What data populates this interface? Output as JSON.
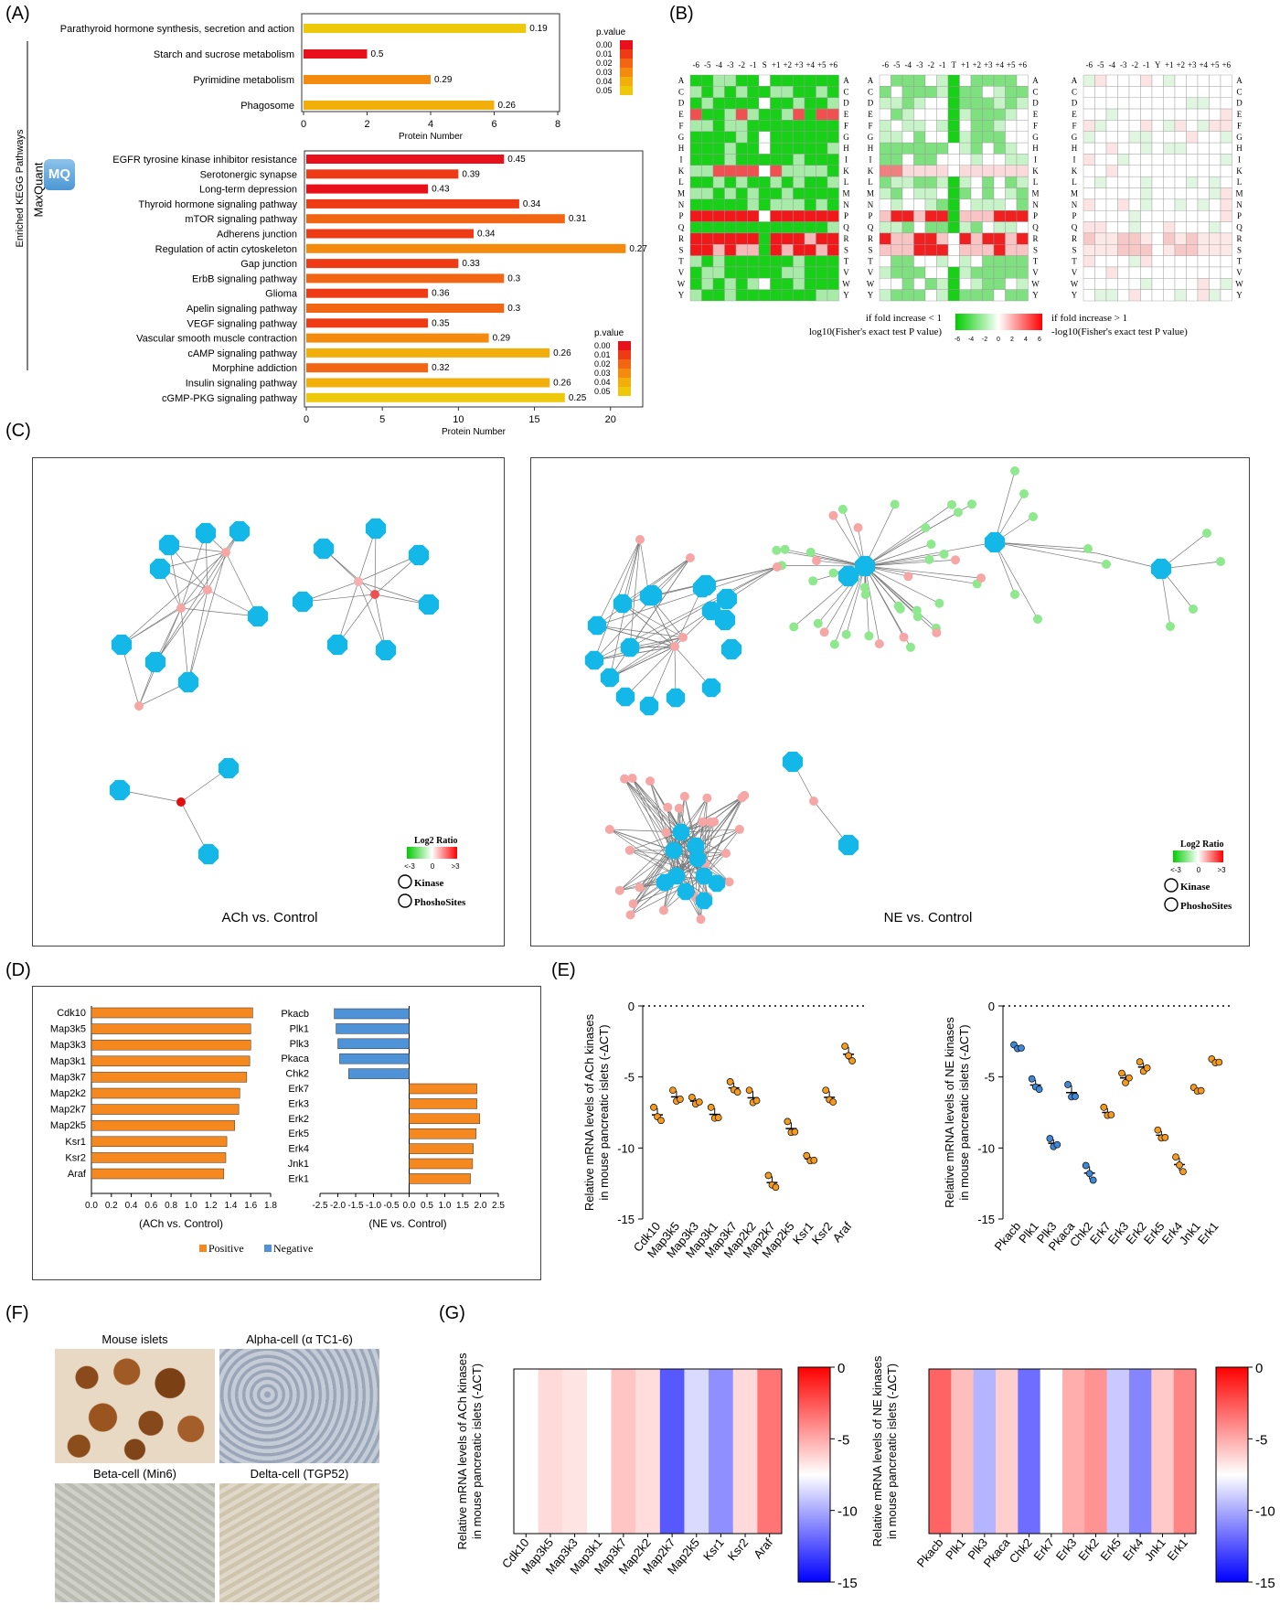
{
  "panel_letters": {
    "A": "(A)",
    "B": "(B)",
    "C": "(C)",
    "D": "(D)",
    "E": "(E)",
    "F": "(F)",
    "G": "(G)"
  },
  "panelA": {
    "side_label": "Enriched KEGG Pathways",
    "maxquant_label": "MaxQuant",
    "logo_text": "MQ",
    "legend_title": "p.value",
    "legend_ticks": [
      "0.00",
      "0.01",
      "0.02",
      "0.03",
      "0.04",
      "0.05"
    ],
    "legend_colors": [
      "#e8101a",
      "#ee3b15",
      "#f26512",
      "#f48b0e",
      "#f2ae0b",
      "#eec80a"
    ]
  },
  "panelB": {
    "aa_rows": [
      "A",
      "C",
      "D",
      "E",
      "F",
      "G",
      "H",
      "I",
      "K",
      "L",
      "M",
      "N",
      "P",
      "Q",
      "R",
      "S",
      "T",
      "V",
      "W",
      "Y"
    ],
    "heatmaps": [
      {
        "center": "S",
        "cols": [
          "-6",
          "-5",
          "-4",
          "-3",
          "-2",
          "-1",
          "S",
          "+1",
          "+2",
          "+3",
          "+4",
          "+5",
          "+6"
        ]
      },
      {
        "center": "T",
        "cols": [
          "-6",
          "-5",
          "-4",
          "-3",
          "-2",
          "-1",
          "T",
          "+1",
          "+2",
          "+3",
          "+4",
          "+5",
          "+6"
        ]
      },
      {
        "center": "Y",
        "cols": [
          "-6",
          "-5",
          "-4",
          "-3",
          "-2",
          "-1",
          "Y",
          "+1",
          "+2",
          "+3",
          "+4",
          "+5",
          "+6"
        ]
      }
    ],
    "legend_left_1": "if fold increase < 1",
    "legend_left_2": "log10(Fisher's exact test P value)",
    "legend_right_1": "if fold increase > 1",
    "legend_right_2": "-log10(Fisher's exact test P value)",
    "legend_ticks": [
      "-6",
      "-4",
      "-2",
      "0",
      "2",
      "4",
      "6"
    ]
  },
  "panelC": {
    "ach_caption": "ACh vs. Control",
    "ne_caption": "NE vs. Control",
    "legend_title": "Log2 Ratio",
    "legend_ticks": [
      "<-3",
      "0",
      ">3"
    ],
    "kinase_label": "Kinase",
    "site_label": "PhoshoSites"
  },
  "panelD": {
    "positive_label": "Positive",
    "negative_label": "Negative",
    "positive_color": "#f5891f",
    "negative_color": "#4e92d8"
  },
  "panelE": {
    "ach_ylabel_1": "Relative mRNA levels of ACh kinases",
    "ach_ylabel_2": "in mouse pancreatic islets (-ΔCT)",
    "ne_ylabel_1": "Relative mRNA levels of NE kinases",
    "ne_ylabel_2": "in mouse pancreatic islets (-ΔCT)",
    "yticks": [
      "0",
      "-5",
      "-10",
      "-15"
    ]
  },
  "panelF": {
    "images": [
      {
        "label": "Mouse islets"
      },
      {
        "label": "Alpha-cell (α TC1-6)"
      },
      {
        "label": "Beta-cell (Min6)"
      },
      {
        "label": "Delta-cell (TGP52)"
      }
    ]
  },
  "panelG": {
    "ach_ylabel_1": "Relative mRNA levels of ACh kinases",
    "ach_ylabel_2": "in mouse pancreatic islets (-ΔCT)",
    "ne_ylabel_1": "Relative mRNA levels of NE kinases",
    "ne_ylabel_2": "in mouse pancreatic islets (-ΔCT)",
    "colorbar_ticks": [
      "0",
      "-5",
      "-10",
      "-15"
    ]
  },
  "chart_data": [
    {
      "id": "A-top",
      "type": "bar",
      "orientation": "horizontal",
      "categories": [
        "Parathyroid hormone synthesis, secretion and action",
        "Starch and sucrose metabolism",
        "Pyrimidine metabolism",
        "Phagosome"
      ],
      "values": [
        7,
        2,
        4,
        6
      ],
      "labels": [
        "0.19",
        "0.5",
        "0.29",
        "0.26"
      ],
      "xlabel": "Protein Number",
      "xlim": [
        0,
        8
      ],
      "xticks": [
        "0",
        "2",
        "4",
        "6",
        "8"
      ]
    },
    {
      "id": "A-bottom",
      "type": "bar",
      "orientation": "horizontal",
      "categories": [
        "EGFR tyrosine kinase inhibitor resistance",
        "Serotonergic synapse",
        "Long-term depression",
        "Thyroid hormone signaling pathway",
        "mTOR signaling pathway",
        "Adherens junction",
        "Regulation of actin cytoskeleton",
        "Gap junction",
        "ErbB signaling pathway",
        "Glioma",
        "Apelin signaling pathway",
        "VEGF signaling pathway",
        "Vascular smooth muscle contraction",
        "cAMP signaling pathway",
        "Morphine addiction",
        "Insulin signaling pathway",
        "cGMP-PKG signaling pathway"
      ],
      "values": [
        13,
        10,
        8,
        14,
        17,
        11,
        21,
        10,
        13,
        8,
        13,
        8,
        12,
        16,
        8,
        16,
        17
      ],
      "labels": [
        "0.45",
        "0.39",
        "0.43",
        "0.34",
        "0.31",
        "0.34",
        "0.27",
        "0.33",
        "0.3",
        "0.36",
        "0.3",
        "0.35",
        "0.29",
        "0.26",
        "0.32",
        "0.26",
        "0.25"
      ],
      "xlabel": "Protein Number",
      "xlim": [
        0,
        22
      ],
      "xticks": [
        "0",
        "5",
        "10",
        "15",
        "20"
      ]
    },
    {
      "id": "D-ach",
      "type": "bar",
      "orientation": "horizontal",
      "categories": [
        "Cdk10",
        "Map3k5",
        "Map3k3",
        "Map3k1",
        "Map3k7",
        "Map2k2",
        "Map2k7",
        "Map2k5",
        "Ksr1",
        "Ksr2",
        "Araf"
      ],
      "values": [
        1.62,
        1.6,
        1.6,
        1.59,
        1.56,
        1.49,
        1.48,
        1.44,
        1.36,
        1.35,
        1.33
      ],
      "xlabel": "(ACh vs. Control)",
      "xlim": [
        0,
        1.8
      ],
      "xticks": [
        "0.0",
        "0.2",
        "0.4",
        "0.6",
        "0.8",
        "1.0",
        "1.2",
        "1.4",
        "1.6",
        "1.8"
      ]
    },
    {
      "id": "D-ne",
      "type": "bar",
      "orientation": "horizontal",
      "categories": [
        "Pkacb",
        "Plk1",
        "Plk3",
        "Pkaca",
        "Chk2",
        "Erk7",
        "Erk3",
        "Erk2",
        "Erk5",
        "Erk4",
        "Jnk1",
        "Erk1"
      ],
      "values": [
        -2.1,
        -2.05,
        -2.0,
        -1.95,
        -1.7,
        1.9,
        1.9,
        1.98,
        1.88,
        1.8,
        1.78,
        1.72
      ],
      "xlabel": "(NE vs. Control)",
      "xlim": [
        -2.5,
        2.5
      ],
      "xticks": [
        "-2.5",
        "-2.0",
        "-1.5",
        "-1.0",
        "-0.5",
        "0.0",
        "0.5",
        "1.0",
        "1.5",
        "2.0",
        "2.5"
      ]
    },
    {
      "id": "E-ach",
      "type": "scatter",
      "categories": [
        "Cdk10",
        "Map3k5",
        "Map3k3",
        "Map3k1",
        "Map3k7",
        "Map2k2",
        "Map2k7",
        "Map2k5",
        "Ksr1",
        "Ksr2",
        "Araf"
      ],
      "points": [
        [
          -7.2,
          -7.8,
          -8.0
        ],
        [
          -6.0,
          -6.7,
          -6.5
        ],
        [
          -6.5,
          -6.9,
          -6.7
        ],
        [
          -7.2,
          -7.9,
          -7.8
        ],
        [
          -5.4,
          -5.9,
          -6.0
        ],
        [
          -6.0,
          -6.8,
          -6.6
        ],
        [
          -12.0,
          -12.6,
          -12.7
        ],
        [
          -8.2,
          -8.9,
          -8.8
        ],
        [
          -10.6,
          -10.9,
          -10.8
        ],
        [
          -6.0,
          -6.6,
          -6.7
        ],
        [
          -2.9,
          -3.5,
          -3.8
        ]
      ],
      "ylim": [
        -15,
        0
      ],
      "color": "#f39a1f"
    },
    {
      "id": "E-ne",
      "type": "scatter",
      "categories": [
        "Pkacb",
        "Plk1",
        "Plk3",
        "Pkaca",
        "Chk2",
        "Erk7",
        "Erk3",
        "Erk2",
        "Erk5",
        "Erk4",
        "Jnk1",
        "Erk1"
      ],
      "points": [
        [
          -2.8,
          -3.0,
          -2.9
        ],
        [
          -5.2,
          -5.7,
          -5.8
        ],
        [
          -9.4,
          -9.9,
          -9.7
        ],
        [
          -5.6,
          -6.4,
          -6.3
        ],
        [
          -11.3,
          -11.8,
          -12.2
        ],
        [
          -7.2,
          -7.7,
          -7.6
        ],
        [
          -4.8,
          -5.4,
          -5.0
        ],
        [
          -4.0,
          -4.6,
          -4.3
        ],
        [
          -8.8,
          -9.3,
          -9.2
        ],
        [
          -10.7,
          -11.2,
          -11.6
        ],
        [
          -5.8,
          -6.0,
          -5.9
        ],
        [
          -3.8,
          -4.0,
          -3.9
        ]
      ],
      "ylim": [
        -15,
        0
      ],
      "color_negative": "#3f88d8",
      "color_positive": "#f39a1f"
    },
    {
      "id": "G-ach",
      "type": "heatmap",
      "categories": [
        "Cdk10",
        "Map3k5",
        "Map3k3",
        "Map3k1",
        "Map3k7",
        "Map2k2",
        "Map2k7",
        "Map2k5",
        "Ksr1",
        "Ksr2",
        "Araf"
      ],
      "values": [
        -7.5,
        -6.4,
        -6.7,
        -7.5,
        -5.8,
        -6.5,
        -12.4,
        -8.6,
        -10.8,
        -6.4,
        -3.4
      ],
      "vmin": -15,
      "vmax": 0
    },
    {
      "id": "G-ne",
      "type": "heatmap",
      "categories": [
        "Pkacb",
        "Plk1",
        "Plk3",
        "Pkaca",
        "Chk2",
        "Erk7",
        "Erk3",
        "Erk2",
        "Erk5",
        "Erk4",
        "Jnk1",
        "Erk1"
      ],
      "values": [
        -2.9,
        -5.6,
        -9.7,
        -6.1,
        -11.8,
        -7.5,
        -5.1,
        -4.3,
        -9.1,
        -11.1,
        -5.9,
        -3.9
      ],
      "vmin": -15,
      "vmax": 0
    }
  ]
}
